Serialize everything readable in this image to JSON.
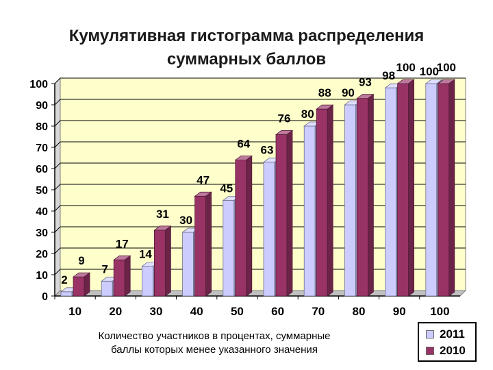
{
  "chart_data": {
    "type": "bar",
    "title": "Кумулятивная гистограмма распределения суммарных баллов",
    "title_lines": [
      "Кумулятивная гистограмма распределения",
      "суммарных баллов"
    ],
    "categories": [
      "10",
      "20",
      "30",
      "40",
      "50",
      "60",
      "70",
      "80",
      "90",
      "100"
    ],
    "series": [
      {
        "name": "2011",
        "values": [
          2,
          7,
          14,
          30,
          45,
          63,
          80,
          90,
          98,
          100
        ],
        "color": "#ccccff"
      },
      {
        "name": "2010",
        "values": [
          9,
          17,
          31,
          47,
          64,
          76,
          88,
          93,
          100,
          100
        ],
        "color": "#993366"
      }
    ],
    "ylim": [
      0,
      100
    ],
    "yticks": [
      0,
      10,
      20,
      30,
      40,
      50,
      60,
      70,
      80,
      90,
      100
    ],
    "plot_background": "#ffffcc",
    "grid": true,
    "legend_position": "bottom-right",
    "caption": "Количество участников в процентах, суммарные баллы которых менее указанного значения",
    "caption_lines": [
      "Количество участников в процентах, суммарные",
      "баллы которых менее указанного значения"
    ]
  }
}
